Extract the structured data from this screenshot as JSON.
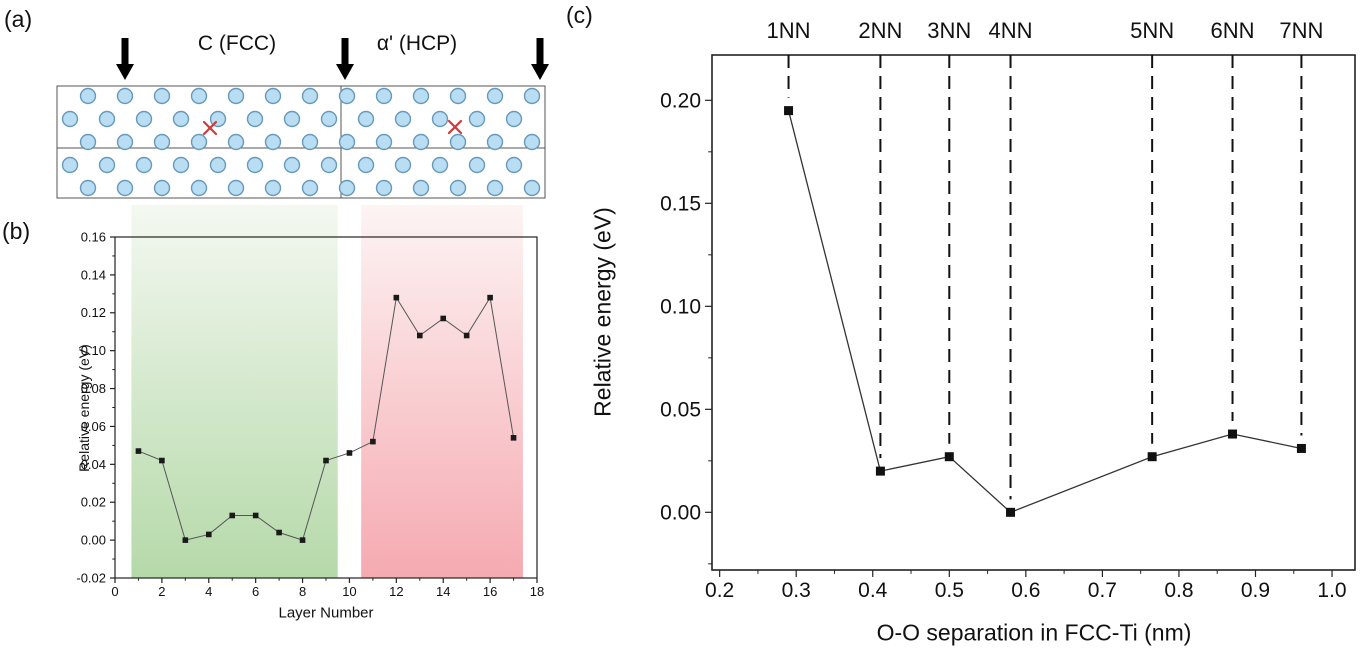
{
  "panels": {
    "a": {
      "label": "(a)",
      "regions": [
        {
          "label": "C (FCC)"
        },
        {
          "label": "α' (HCP)"
        }
      ],
      "atom_fill": "#b9ddf2",
      "atom_stroke": "#6699bb",
      "defect_color": "#cc3b3b",
      "arrow_color": "#000000"
    },
    "b": {
      "label": "(b)"
    },
    "c": {
      "label": "(c)"
    }
  },
  "chart_data": [
    {
      "id": "b",
      "type": "line",
      "title": "",
      "xlabel": "Layer Number",
      "ylabel": "Relative energy (eV)",
      "xlim": [
        0,
        18
      ],
      "ylim": [
        -0.02,
        0.16
      ],
      "xticks": [
        "0",
        "2",
        "4",
        "6",
        "8",
        "10",
        "12",
        "14",
        "16",
        "18"
      ],
      "yticks": [
        "0.16",
        "0.14",
        "0.12",
        "0.10",
        "0.08",
        "0.06",
        "0.04",
        "0.02",
        "0.00",
        "-0.02"
      ],
      "x": [
        1,
        2,
        3,
        4,
        5,
        6,
        7,
        8,
        9,
        10,
        11,
        12,
        13,
        14,
        15,
        16,
        17
      ],
      "y": [
        0.047,
        0.042,
        0.0,
        0.003,
        0.013,
        0.013,
        0.004,
        0.0,
        0.042,
        0.046,
        0.052,
        0.128,
        0.108,
        0.117,
        0.108,
        0.128,
        0.054
      ],
      "marker": "square",
      "marker_color": "#1a1a1a",
      "line_color": "#555555",
      "grid": false,
      "shaded_regions": [
        {
          "label": "C (FCC)",
          "x0": 0.7,
          "x1": 9.5,
          "color_top": "#f4f8f1",
          "color_bottom": "#b5d9a9"
        },
        {
          "label": "α' (HCP)",
          "x0": 10.5,
          "x1": 17.4,
          "color_top": "#fdf4f4",
          "color_bottom": "#f5aab1"
        }
      ]
    },
    {
      "id": "c",
      "type": "line",
      "title": "",
      "xlabel": "O-O separation in FCC-Ti (nm)",
      "ylabel": "Relative energy (eV)",
      "xlim": [
        0.19,
        1.03
      ],
      "ylim": [
        -0.028,
        0.222
      ],
      "xticks": [
        "0.2",
        "0.3",
        "0.4",
        "0.5",
        "0.6",
        "0.7",
        "0.8",
        "0.9",
        "1.0"
      ],
      "yticks": [
        "0.20",
        "0.15",
        "0.10",
        "0.05",
        "0.00"
      ],
      "x": [
        0.29,
        0.41,
        0.5,
        0.58,
        0.765,
        0.87,
        0.96
      ],
      "y": [
        0.195,
        0.02,
        0.027,
        0.0,
        0.027,
        0.038,
        0.031
      ],
      "marker": "square",
      "marker_color": "#111111",
      "line_color": "#333333",
      "grid": false,
      "annotations": [
        {
          "label": "1NN",
          "x": 0.29
        },
        {
          "label": "2NN",
          "x": 0.41
        },
        {
          "label": "3NN",
          "x": 0.5
        },
        {
          "label": "4NN",
          "x": 0.58
        },
        {
          "label": "5NN",
          "x": 0.765
        },
        {
          "label": "6NN",
          "x": 0.87
        },
        {
          "label": "7NN",
          "x": 0.96
        }
      ]
    }
  ]
}
